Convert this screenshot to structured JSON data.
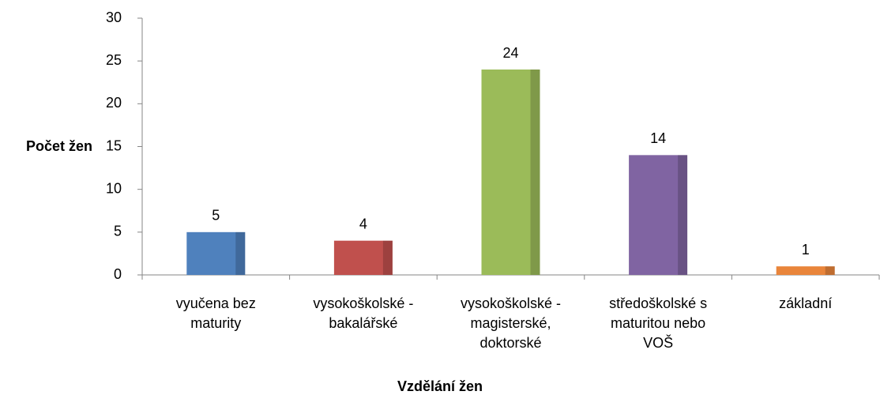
{
  "chart_data": {
    "type": "bar",
    "categories": [
      "vyučena bez maturity",
      "vysokoškolské - bakalářské",
      "vysokoškolské - magisterské, doktorské",
      "středoškolské s maturitou nebo VOŠ",
      "základní"
    ],
    "values": [
      5,
      4,
      24,
      14,
      1
    ],
    "colors": [
      "#4f81bd",
      "#c0504d",
      "#9bbb59",
      "#8064a2",
      "#e9853b"
    ],
    "ylim": [
      0,
      30
    ],
    "yticks": [
      0,
      5,
      10,
      15,
      20,
      25,
      30
    ],
    "y_label": "Počet žen",
    "x_label": "Vzdělání žen",
    "grid": false
  }
}
